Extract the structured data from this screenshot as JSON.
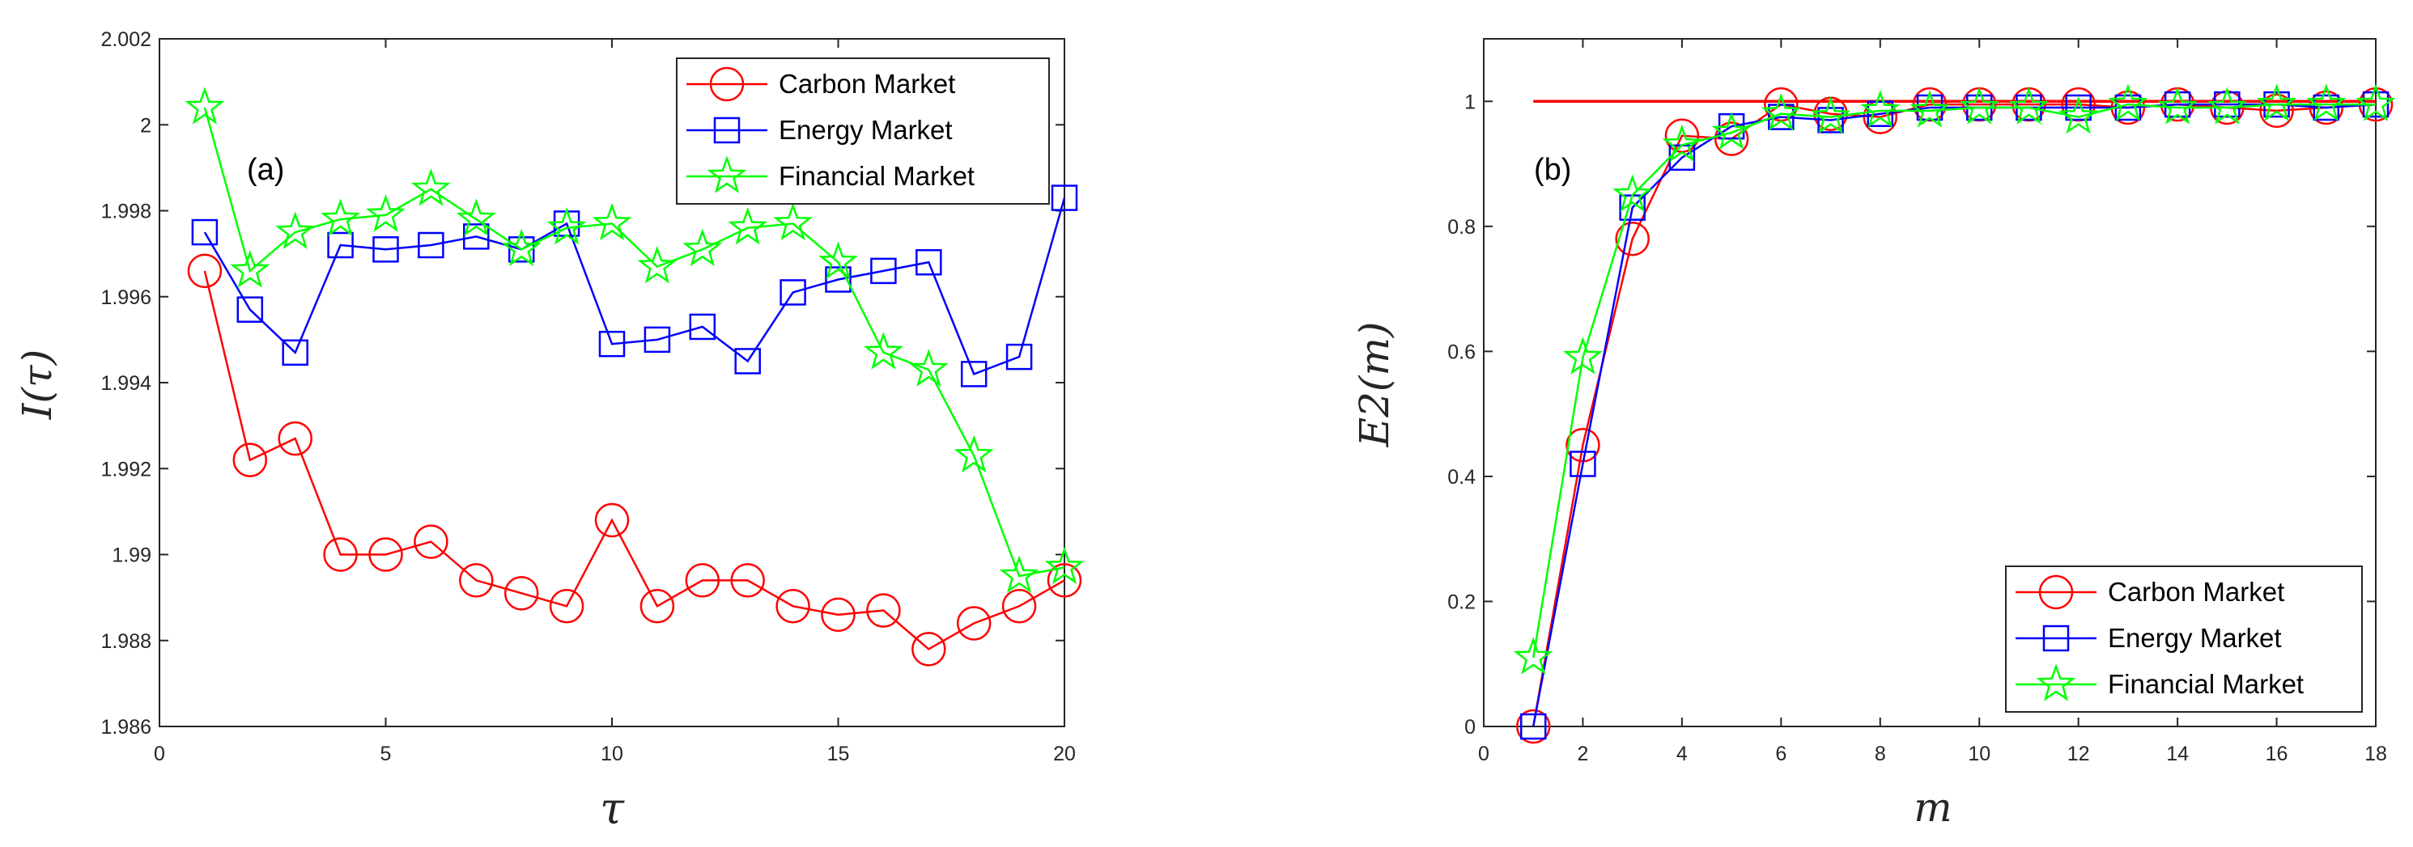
{
  "figure": {
    "background": "#ffffff",
    "axis_color": "#262626"
  },
  "chart_data": [
    {
      "type": "line",
      "panel_label": "(a)",
      "xlabel": "τ",
      "ylabel": "I(τ)",
      "xlim": [
        0,
        20
      ],
      "ylim": [
        1.986,
        2.002
      ],
      "xticks": [
        0,
        5,
        10,
        15,
        20
      ],
      "yticks": [
        1.986,
        1.988,
        1.99,
        1.992,
        1.994,
        1.996,
        1.998,
        2,
        2.002
      ],
      "ytick_labels": [
        "1.986",
        "1.988",
        "1.99",
        "1.992",
        "1.994",
        "1.996",
        "1.998",
        "2",
        "2.002"
      ],
      "legend_position": "top-right",
      "x": [
        1,
        2,
        3,
        4,
        5,
        6,
        7,
        8,
        9,
        10,
        11,
        12,
        13,
        14,
        15,
        16,
        17,
        18,
        19,
        20
      ],
      "series": [
        {
          "name": "Carbon Market",
          "color": "#ff0000",
          "marker": "circle",
          "values": [
            1.9966,
            1.9922,
            1.9927,
            1.99,
            1.99,
            1.9903,
            1.9894,
            1.9891,
            1.9888,
            1.9908,
            1.9888,
            1.9894,
            1.9894,
            1.9888,
            1.9886,
            1.9887,
            1.9878,
            1.9884,
            1.9888,
            1.9894
          ]
        },
        {
          "name": "Energy Market",
          "color": "#0000ff",
          "marker": "square",
          "values": [
            1.9975,
            1.9957,
            1.9947,
            1.9972,
            1.9971,
            1.9972,
            1.9974,
            1.9971,
            1.9977,
            1.9949,
            1.995,
            1.9953,
            1.9945,
            1.9961,
            1.9964,
            1.9966,
            1.9968,
            1.9942,
            1.9946,
            1.9983
          ]
        },
        {
          "name": "Financial Market",
          "color": "#00ff00",
          "marker": "star",
          "values": [
            2.0004,
            1.9966,
            1.9975,
            1.9978,
            1.9979,
            1.9985,
            1.9978,
            1.9971,
            1.9976,
            1.9977,
            1.9967,
            1.9971,
            1.9976,
            1.9977,
            1.9968,
            1.9947,
            1.9943,
            1.9923,
            1.9895,
            1.9897
          ]
        }
      ]
    },
    {
      "type": "line",
      "panel_label": "(b)",
      "xlabel": "m",
      "ylabel": "E2(m)",
      "xlim": [
        0,
        18
      ],
      "ylim": [
        0,
        1.1
      ],
      "xticks": [
        0,
        2,
        4,
        6,
        8,
        10,
        12,
        14,
        16,
        18
      ],
      "yticks": [
        0,
        0.2,
        0.4,
        0.6,
        0.8,
        1
      ],
      "ytick_labels": [
        "0",
        "0.2",
        "0.4",
        "0.6",
        "0.8",
        "1"
      ],
      "legend_position": "bottom-right",
      "reference_line": {
        "y": 1,
        "color": "#ff0000",
        "x_range": [
          1,
          18
        ]
      },
      "x": [
        1,
        2,
        3,
        4,
        5,
        6,
        7,
        8,
        9,
        10,
        11,
        12,
        13,
        14,
        15,
        16,
        17,
        18
      ],
      "series": [
        {
          "name": "Carbon Market",
          "color": "#ff0000",
          "marker": "circle",
          "values": [
            0.0,
            0.45,
            0.78,
            0.945,
            0.94,
            0.995,
            0.98,
            0.975,
            0.995,
            0.995,
            0.995,
            0.995,
            0.99,
            0.995,
            0.99,
            0.985,
            0.99,
            0.995
          ]
        },
        {
          "name": "Energy Market",
          "color": "#0000ff",
          "marker": "square",
          "values": [
            0.0,
            0.42,
            0.83,
            0.91,
            0.96,
            0.975,
            0.97,
            0.98,
            0.99,
            0.99,
            0.99,
            0.99,
            0.99,
            0.995,
            0.995,
            0.995,
            0.99,
            0.995
          ]
        },
        {
          "name": "Financial Market",
          "color": "#00ff00",
          "marker": "star",
          "values": [
            0.11,
            0.59,
            0.85,
            0.93,
            0.95,
            0.98,
            0.975,
            0.985,
            0.985,
            0.99,
            0.99,
            0.975,
            0.995,
            0.99,
            0.99,
            0.995,
            0.995,
            0.995
          ]
        }
      ]
    }
  ]
}
